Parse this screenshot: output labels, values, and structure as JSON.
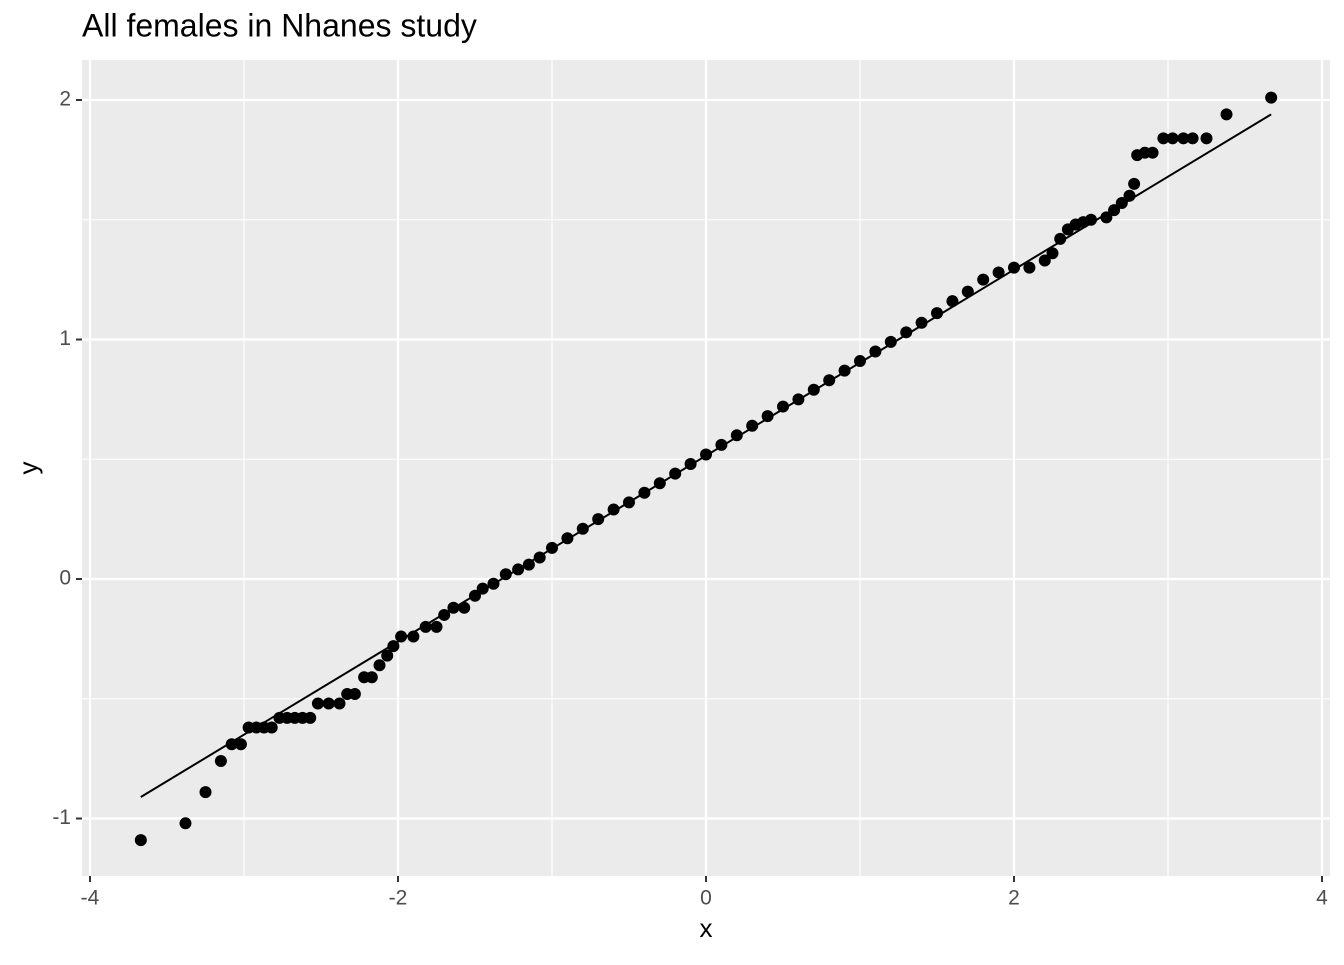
{
  "chart_data": {
    "type": "scatter",
    "title": "All females in Nhanes study",
    "x_label": "x",
    "y_label": "y",
    "xlim": [
      -4.052,
      4.052
    ],
    "ylim": [
      -1.24,
      2.167
    ],
    "xticks": [
      -4,
      -2,
      0,
      2,
      4
    ],
    "yticks": [
      -1,
      0,
      1,
      2
    ],
    "xminor": [
      -3,
      -1,
      1,
      3
    ],
    "yminor": [
      -0.5,
      0.5,
      1.5
    ],
    "grid": true,
    "color": "#000000",
    "x": [
      -3.67,
      -3.38,
      -3.25,
      -3.15,
      -3.08,
      -3.02,
      -2.97,
      -2.92,
      -2.87,
      -2.82,
      -2.77,
      -2.72,
      -2.67,
      -2.62,
      -2.57,
      -2.52,
      -2.45,
      -2.38,
      -2.33,
      -2.28,
      -2.22,
      -2.17,
      -2.12,
      -2.07,
      -2.03,
      -1.98,
      -1.9,
      -1.82,
      -1.75,
      -1.7,
      -1.64,
      -1.57,
      -1.5,
      -1.45,
      -1.38,
      -1.3,
      -1.22,
      -1.15,
      -1.08,
      -1.0,
      -0.9,
      -0.8,
      -0.7,
      -0.6,
      -0.5,
      -0.4,
      -0.3,
      -0.2,
      -0.1,
      0,
      0.1,
      0.2,
      0.3,
      0.4,
      0.5,
      0.6,
      0.7,
      0.8,
      0.9,
      1.0,
      1.1,
      1.2,
      1.3,
      1.4,
      1.5,
      1.6,
      1.7,
      1.8,
      1.9,
      2.0,
      2.1,
      2.2,
      2.25,
      2.3,
      2.35,
      2.4,
      2.45,
      2.5,
      2.6,
      2.65,
      2.7,
      2.75,
      2.78,
      2.8,
      2.85,
      2.9,
      2.97,
      3.03,
      3.1,
      3.16,
      3.25,
      3.38,
      3.67
    ],
    "values": [
      -1.09,
      -1.02,
      -0.89,
      -0.76,
      -0.69,
      -0.69,
      -0.62,
      -0.62,
      -0.62,
      -0.62,
      -0.58,
      -0.58,
      -0.58,
      -0.58,
      -0.58,
      -0.52,
      -0.52,
      -0.52,
      -0.48,
      -0.48,
      -0.41,
      -0.41,
      -0.36,
      -0.32,
      -0.28,
      -0.24,
      -0.24,
      -0.2,
      -0.2,
      -0.15,
      -0.12,
      -0.12,
      -0.07,
      -0.04,
      -0.02,
      0.02,
      0.04,
      0.06,
      0.09,
      0.13,
      0.17,
      0.21,
      0.25,
      0.29,
      0.32,
      0.36,
      0.4,
      0.44,
      0.48,
      0.52,
      0.56,
      0.6,
      0.64,
      0.68,
      0.72,
      0.75,
      0.79,
      0.83,
      0.87,
      0.91,
      0.95,
      0.99,
      1.03,
      1.07,
      1.11,
      1.16,
      1.2,
      1.25,
      1.28,
      1.3,
      1.3,
      1.33,
      1.36,
      1.42,
      1.46,
      1.48,
      1.49,
      1.5,
      1.51,
      1.54,
      1.57,
      1.6,
      1.65,
      1.77,
      1.78,
      1.78,
      1.84,
      1.84,
      1.84,
      1.84,
      1.84,
      1.94,
      2.01
    ],
    "qq_line": {
      "x": [
        -3.67,
        3.67
      ],
      "y": [
        -0.91,
        1.94
      ]
    }
  }
}
